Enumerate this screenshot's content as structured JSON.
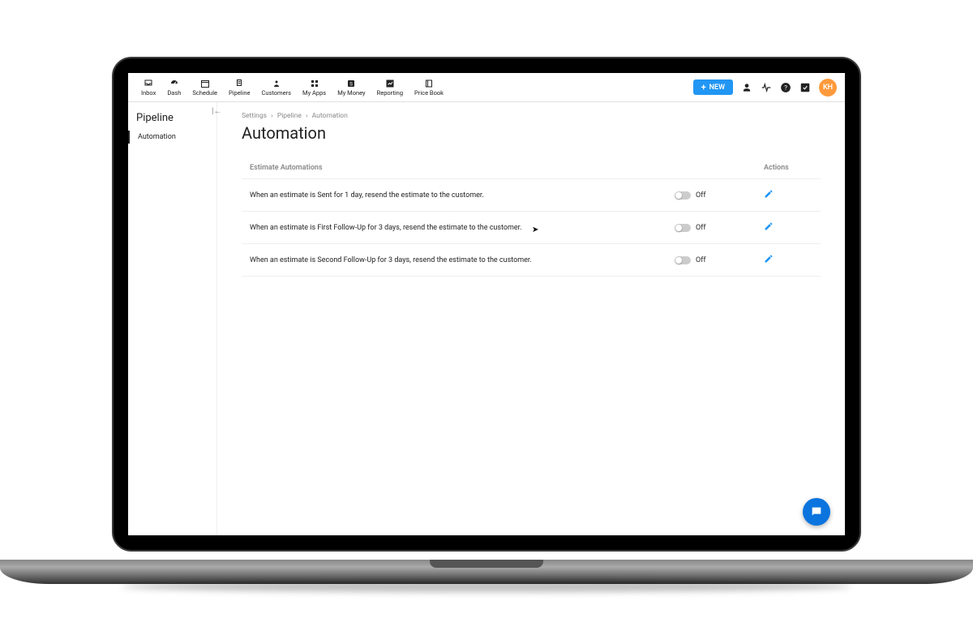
{
  "nav": [
    {
      "label": "Inbox",
      "icon": "inbox"
    },
    {
      "label": "Dash",
      "icon": "dash"
    },
    {
      "label": "Schedule",
      "icon": "schedule"
    },
    {
      "label": "Pipeline",
      "icon": "pipeline"
    },
    {
      "label": "Customers",
      "icon": "customers"
    },
    {
      "label": "My Apps",
      "icon": "apps"
    },
    {
      "label": "My Money",
      "icon": "money"
    },
    {
      "label": "Reporting",
      "icon": "reporting"
    },
    {
      "label": "Price Book",
      "icon": "pricebook"
    }
  ],
  "new_button_label": "NEW",
  "avatar_initials": "KH",
  "sidebar": {
    "title": "Pipeline",
    "items": [
      {
        "label": "Automation",
        "active": true
      }
    ]
  },
  "breadcrumb": [
    "Settings",
    "Pipeline",
    "Automation"
  ],
  "page_title": "Automation",
  "table": {
    "header_left": "Estimate Automations",
    "header_right": "Actions",
    "rows": [
      {
        "desc": "When an estimate is Sent for 1 day, resend the estimate to the customer.",
        "state": "Off"
      },
      {
        "desc": "When an estimate is First Follow-Up for 3 days, resend the estimate to the customer.",
        "state": "Off"
      },
      {
        "desc": "When an estimate is Second Follow-Up for 3 days, resend the estimate to the customer.",
        "state": "Off"
      }
    ]
  },
  "colors": {
    "primary": "#2196f3",
    "chat": "#0b74de",
    "avatar": "#ff9a3c",
    "border": "#e0e0e0",
    "muted": "#888888"
  }
}
